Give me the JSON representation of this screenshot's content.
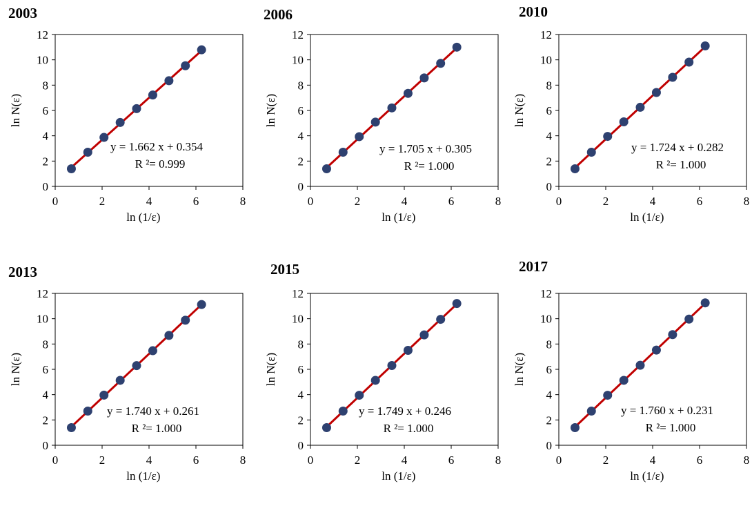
{
  "chart_data": [
    {
      "type": "scatter",
      "title": "2003",
      "xlabel": "ln (1/ε)",
      "ylabel": "ln N(ε)",
      "xlim": [
        0,
        8
      ],
      "ylim": [
        0,
        12
      ],
      "x_ticks": [
        "0",
        "2",
        "4",
        "6",
        "8"
      ],
      "y_ticks": [
        "0",
        "2",
        "4",
        "6",
        "8",
        "10",
        "12"
      ],
      "grid": false,
      "x": [
        0.69,
        1.39,
        2.08,
        2.77,
        3.47,
        4.16,
        4.85,
        5.55,
        6.24
      ],
      "y": [
        1.39,
        2.7,
        3.87,
        5.05,
        6.14,
        7.22,
        8.35,
        9.53,
        10.79
      ],
      "fit": {
        "slope": 1.662,
        "intercept": 0.354
      },
      "equation": "y = 1.662 x + 0.354",
      "r2": "R ²= 0.999"
    },
    {
      "type": "scatter",
      "title": "2006",
      "xlabel": "ln (1/ε)",
      "ylabel": "ln N(ε)",
      "xlim": [
        0,
        8
      ],
      "ylim": [
        0,
        12
      ],
      "x_ticks": [
        "0",
        "2",
        "4",
        "6",
        "8"
      ],
      "y_ticks": [
        "0",
        "2",
        "4",
        "6",
        "8",
        "10",
        "12"
      ],
      "grid": false,
      "x": [
        0.69,
        1.39,
        2.08,
        2.77,
        3.47,
        4.16,
        4.85,
        5.55,
        6.24
      ],
      "y": [
        1.39,
        2.7,
        3.93,
        5.08,
        6.2,
        7.35,
        8.57,
        9.72,
        11.0
      ],
      "fit": {
        "slope": 1.705,
        "intercept": 0.305
      },
      "equation": "y = 1.705 x + 0.305",
      "r2": "R ²= 1.000"
    },
    {
      "type": "scatter",
      "title": "2010",
      "xlabel": "ln (1/ε)",
      "ylabel": "ln N(ε)",
      "xlim": [
        0,
        8
      ],
      "ylim": [
        0,
        12
      ],
      "x_ticks": [
        "0",
        "2",
        "4",
        "6",
        "8"
      ],
      "y_ticks": [
        "0",
        "2",
        "4",
        "6",
        "8",
        "10",
        "12"
      ],
      "grid": false,
      "x": [
        0.69,
        1.39,
        2.08,
        2.77,
        3.47,
        4.16,
        4.85,
        5.55,
        6.24
      ],
      "y": [
        1.39,
        2.7,
        3.95,
        5.1,
        6.25,
        7.42,
        8.62,
        9.82,
        11.1
      ],
      "fit": {
        "slope": 1.724,
        "intercept": 0.282
      },
      "equation": "y = 1.724 x + 0.282",
      "r2": "R ²= 1.000"
    },
    {
      "type": "scatter",
      "title": "2013",
      "xlabel": "ln (1/ε)",
      "ylabel": "ln N(ε)",
      "xlim": [
        0,
        8
      ],
      "ylim": [
        0,
        12
      ],
      "x_ticks": [
        "0",
        "2",
        "4",
        "6",
        "8"
      ],
      "y_ticks": [
        "0",
        "2",
        "4",
        "6",
        "8",
        "10",
        "12"
      ],
      "grid": false,
      "x": [
        0.69,
        1.39,
        2.08,
        2.77,
        3.47,
        4.16,
        4.85,
        5.55,
        6.24
      ],
      "y": [
        1.39,
        2.7,
        3.96,
        5.13,
        6.29,
        7.47,
        8.68,
        9.88,
        11.12
      ],
      "fit": {
        "slope": 1.74,
        "intercept": 0.261
      },
      "equation": "y = 1.740 x + 0.261",
      "r2": "R ²= 1.000"
    },
    {
      "type": "scatter",
      "title": "2015",
      "xlabel": "ln (1/ε)",
      "ylabel": "ln N(ε)",
      "xlim": [
        0,
        8
      ],
      "ylim": [
        0,
        12
      ],
      "x_ticks": [
        "0",
        "2",
        "4",
        "6",
        "8"
      ],
      "y_ticks": [
        "0",
        "2",
        "4",
        "6",
        "8",
        "10",
        "12"
      ],
      "grid": false,
      "x": [
        0.69,
        1.39,
        2.08,
        2.77,
        3.47,
        4.16,
        4.85,
        5.55,
        6.24
      ],
      "y": [
        1.39,
        2.7,
        3.95,
        5.13,
        6.3,
        7.5,
        8.72,
        9.95,
        11.2
      ],
      "fit": {
        "slope": 1.749,
        "intercept": 0.246
      },
      "equation": "y = 1.749 x + 0.246",
      "r2": "R ²= 1.000"
    },
    {
      "type": "scatter",
      "title": "2017",
      "xlabel": "ln (1/ε)",
      "ylabel": "ln N(ε)",
      "xlim": [
        0,
        8
      ],
      "ylim": [
        0,
        12
      ],
      "x_ticks": [
        "0",
        "2",
        "4",
        "6",
        "8"
      ],
      "y_ticks": [
        "0",
        "2",
        "4",
        "6",
        "8",
        "10",
        "12"
      ],
      "grid": false,
      "x": [
        0.69,
        1.39,
        2.08,
        2.77,
        3.47,
        4.16,
        4.85,
        5.55,
        6.24
      ],
      "y": [
        1.39,
        2.7,
        3.95,
        5.13,
        6.32,
        7.52,
        8.74,
        9.97,
        11.25
      ],
      "fit": {
        "slope": 1.76,
        "intercept": 0.231
      },
      "equation": "y = 1.760 x + 0.231",
      "r2": "R ²= 1.000"
    }
  ],
  "colors": {
    "marker": "#2e4170",
    "fit_line": "#c00000",
    "frame": "#000000"
  }
}
